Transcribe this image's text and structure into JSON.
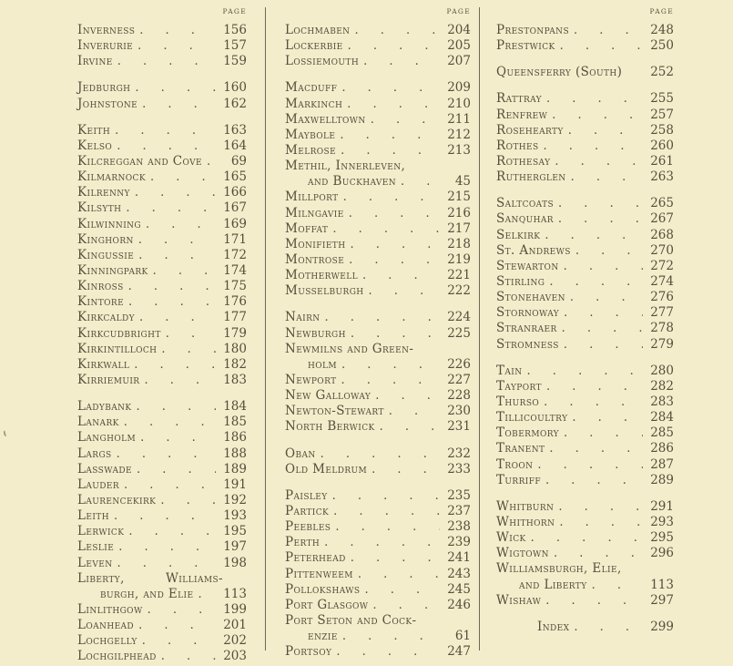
{
  "page_header_label": "Page",
  "theme": {
    "background": "#f3edcb",
    "text": "#544e3d",
    "divider": "#6f6955"
  },
  "columns": [
    {
      "entries": [
        {
          "name": "Inverness",
          "page": "156"
        },
        {
          "name": "Inverurie",
          "page": "157"
        },
        {
          "name": "Irvine",
          "page": "159"
        },
        {
          "name": "Jedburgh",
          "page": "160",
          "gap": true
        },
        {
          "name": "Johnstone",
          "page": "162"
        },
        {
          "name": "Keith",
          "page": "163",
          "gap": true
        },
        {
          "name": "Kelso",
          "page": "164"
        },
        {
          "name": "Kilcreggan and Cove",
          "page": "69"
        },
        {
          "name": "Kilmarnock",
          "page": "165"
        },
        {
          "name": "Kilrenny",
          "page": "166"
        },
        {
          "name": "Kilsyth",
          "page": "167"
        },
        {
          "name": "Kilwinning",
          "page": "169"
        },
        {
          "name": "Kinghorn",
          "page": "171"
        },
        {
          "name": "Kingussie",
          "page": "172"
        },
        {
          "name": "Kinningpark",
          "page": "174"
        },
        {
          "name": "Kinross",
          "page": "175"
        },
        {
          "name": "Kintore",
          "page": "176"
        },
        {
          "name": "Kirkcaldy",
          "page": "177"
        },
        {
          "name": "Kirkcudbright",
          "page": "179"
        },
        {
          "name": "Kirkintilloch",
          "page": "180"
        },
        {
          "name": "Kirkwall",
          "page": "182"
        },
        {
          "name": "Kirriemuir",
          "page": "183"
        },
        {
          "name": "Ladybank",
          "page": "184",
          "gap": true
        },
        {
          "name": "Lanark",
          "page": "185"
        },
        {
          "name": "Langholm",
          "page": "186"
        },
        {
          "name": "Largs",
          "page": "188"
        },
        {
          "name": "Lasswade",
          "page": "189"
        },
        {
          "name": "Lauder",
          "page": "191"
        },
        {
          "name": "Laurencekirk",
          "page": "192"
        },
        {
          "name": "Leith",
          "page": "193"
        },
        {
          "name": "Lerwick",
          "page": "195"
        },
        {
          "name": "Leslie",
          "page": "197"
        },
        {
          "name": "Leven",
          "page": "198"
        },
        {
          "name": "Liberty,|Williams-",
          "name2": "burgh, and Elie",
          "page": "113",
          "spread": true
        },
        {
          "name": "Linlithgow",
          "page": "199"
        },
        {
          "name": "Loanhead",
          "page": "201"
        },
        {
          "name": "Lochgelly",
          "page": "202"
        },
        {
          "name": "Lochgilphead",
          "page": "203"
        }
      ]
    },
    {
      "entries": [
        {
          "name": "Lochmaben",
          "page": "204"
        },
        {
          "name": "Lockerbie",
          "page": "205"
        },
        {
          "name": "Lossiemouth",
          "page": "207"
        },
        {
          "name": "Macduff",
          "page": "209",
          "gap": true
        },
        {
          "name": "Markinch",
          "page": "210"
        },
        {
          "name": "Maxwelltown",
          "page": "211"
        },
        {
          "name": "Maybole",
          "page": "212"
        },
        {
          "name": "Melrose",
          "page": "213"
        },
        {
          "name": "Methil, Innerleven,",
          "name2": "and Buckhaven",
          "page": "45"
        },
        {
          "name": "Millport",
          "page": "215"
        },
        {
          "name": "Milngavie",
          "page": "216"
        },
        {
          "name": "Moffat",
          "page": "217"
        },
        {
          "name": "Monifieth",
          "page": "218"
        },
        {
          "name": "Montrose",
          "page": "219"
        },
        {
          "name": "Motherwell",
          "page": "221"
        },
        {
          "name": "Musselburgh",
          "page": "222"
        },
        {
          "name": "Nairn",
          "page": "224",
          "gap": true
        },
        {
          "name": "Newburgh",
          "page": "225"
        },
        {
          "name": "Newmilns and Green-",
          "name2": "holm",
          "page": "226"
        },
        {
          "name": "Newport",
          "page": "227"
        },
        {
          "name": "New Galloway",
          "page": "228"
        },
        {
          "name": "Newton-Stewart",
          "page": "230"
        },
        {
          "name": "North Berwick",
          "page": "231"
        },
        {
          "name": "Oban",
          "page": "232",
          "gap": true
        },
        {
          "name": "Old Meldrum",
          "page": "233"
        },
        {
          "name": "Paisley",
          "page": "235",
          "gap": true
        },
        {
          "name": "Partick",
          "page": "237"
        },
        {
          "name": "Peebles",
          "page": "238"
        },
        {
          "name": "Perth",
          "page": "239"
        },
        {
          "name": "Peterhead",
          "page": "241"
        },
        {
          "name": "Pittenweem",
          "page": "243"
        },
        {
          "name": "Pollokshaws",
          "page": "245"
        },
        {
          "name": "Port Glasgow",
          "page": "246"
        },
        {
          "name": "Port Seton and Cock-",
          "name2": "enzie",
          "page": "61"
        },
        {
          "name": "Portsoy",
          "page": "247"
        }
      ]
    },
    {
      "entries": [
        {
          "name": "Prestonpans",
          "page": "248"
        },
        {
          "name": "Prestwick",
          "page": "250"
        },
        {
          "name": "Queensferry (South)",
          "page": "252",
          "gap": true,
          "noleader": true
        },
        {
          "name": "Rattray",
          "page": "255",
          "gap": true
        },
        {
          "name": "Renfrew",
          "page": "257"
        },
        {
          "name": "Rosehearty",
          "page": "258"
        },
        {
          "name": "Rothes",
          "page": "260"
        },
        {
          "name": "Rothesay",
          "page": "261"
        },
        {
          "name": "Rutherglen",
          "page": "263"
        },
        {
          "name": "Saltcoats",
          "page": "265",
          "gap": true
        },
        {
          "name": "Sanquhar",
          "page": "267"
        },
        {
          "name": "Selkirk",
          "page": "268"
        },
        {
          "name": "St. Andrews",
          "page": "270"
        },
        {
          "name": "Stewarton",
          "page": "272"
        },
        {
          "name": "Stirling",
          "page": "274"
        },
        {
          "name": "Stonehaven",
          "page": "276"
        },
        {
          "name": "Stornoway",
          "page": "277"
        },
        {
          "name": "Stranraer",
          "page": "278"
        },
        {
          "name": "Stromness",
          "page": "279"
        },
        {
          "name": "Tain",
          "page": "280",
          "gap": true
        },
        {
          "name": "Tayport",
          "page": "282"
        },
        {
          "name": "Thurso",
          "page": "283"
        },
        {
          "name": "Tillicoultry",
          "page": "284"
        },
        {
          "name": "Tobermory",
          "page": "285"
        },
        {
          "name": "Tranent",
          "page": "286"
        },
        {
          "name": "Troon",
          "page": "287"
        },
        {
          "name": "Turriff",
          "page": "289"
        },
        {
          "name": "Whitburn",
          "page": "291",
          "gap": true
        },
        {
          "name": "Whithorn",
          "page": "293"
        },
        {
          "name": "Wick",
          "page": "295"
        },
        {
          "name": "Wigtown",
          "page": "296"
        },
        {
          "name": "Williamsburgh, Elie,",
          "name2": "and Liberty",
          "page": "113"
        },
        {
          "name": "Wishaw",
          "page": "297"
        },
        {
          "name": "Index",
          "page": "299",
          "gap": true,
          "indent": true
        }
      ]
    }
  ]
}
